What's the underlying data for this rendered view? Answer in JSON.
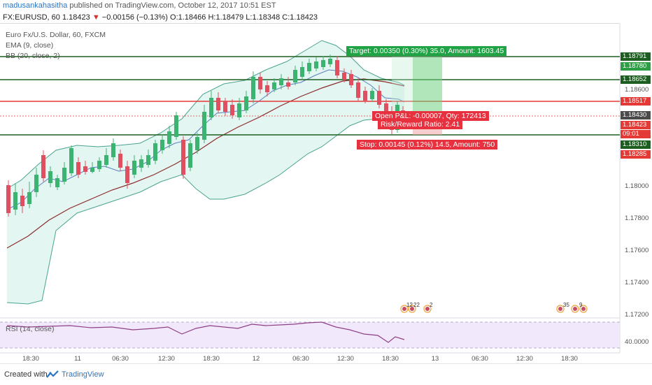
{
  "header": {
    "author": "madusankahasitha",
    "published": "published on TradingView.com, October 12, 2017 10:51 EST"
  },
  "quote": {
    "symbol": "FX:EURUSD, 60",
    "last": "1.18423",
    "arrow": "▼",
    "change": "−0.00156 (−0.13%)",
    "open": "O:1.18466",
    "high": "H:1.18479",
    "low": "L:1.18348",
    "close": "C:1.18423"
  },
  "legend": {
    "title": "Euro Fx/U.S. Dollar, 60, FXCM",
    "ema": "EMA (9, close)",
    "bb": "BB (20, close, 2)",
    "rsi": "RSI (14, close)"
  },
  "trade": {
    "target": "Target: 0.00350 (0.30%) 35.0, Amount: 1603.45",
    "open": "Open P&L: -0.00007, Qty: 172413",
    "ratio": "Risk/Reward Ratio: 2.41",
    "stop": "Stop: 0.00145 (0.12%) 14.5, Amount: 750"
  },
  "price_axis": {
    "ticks": [
      "1.18600",
      "1.18000",
      "1.17800",
      "1.17600",
      "1.17400",
      "1.17200"
    ],
    "rsi_tick": "40.0000",
    "labels": [
      {
        "text": "1.18791",
        "kind": "level"
      },
      {
        "text": "1.18780",
        "kind": "target"
      },
      {
        "text": "1.18652",
        "kind": "level"
      },
      {
        "text": "1.18517",
        "kind": "stop"
      },
      {
        "text": "1.18430",
        "kind": "neutral"
      },
      {
        "text": "1.18423",
        "kind": "stop"
      },
      {
        "text": "09:01",
        "kind": "stop"
      },
      {
        "text": "1.18310",
        "kind": "level"
      },
      {
        "text": "1.18285",
        "kind": "stop"
      }
    ]
  },
  "time_axis": [
    "18:30",
    "11",
    "06:30",
    "12:30",
    "18:30",
    "12",
    "06:30",
    "12:30",
    "18:30",
    "13",
    "06:30",
    "12:30",
    "18:30"
  ],
  "events": [
    "12",
    "22",
    "2",
    "35",
    "9"
  ],
  "footer": {
    "created": "Created with",
    "brand": "TradingView"
  },
  "colors": {
    "up": "#3cb371",
    "down": "#e04f5f",
    "level": "#1b5e20",
    "stop_line": "#e53935",
    "bb_fill": "#d9f2ec",
    "ema": "#5b7fbf",
    "rsi": "#8e3f86"
  }
}
